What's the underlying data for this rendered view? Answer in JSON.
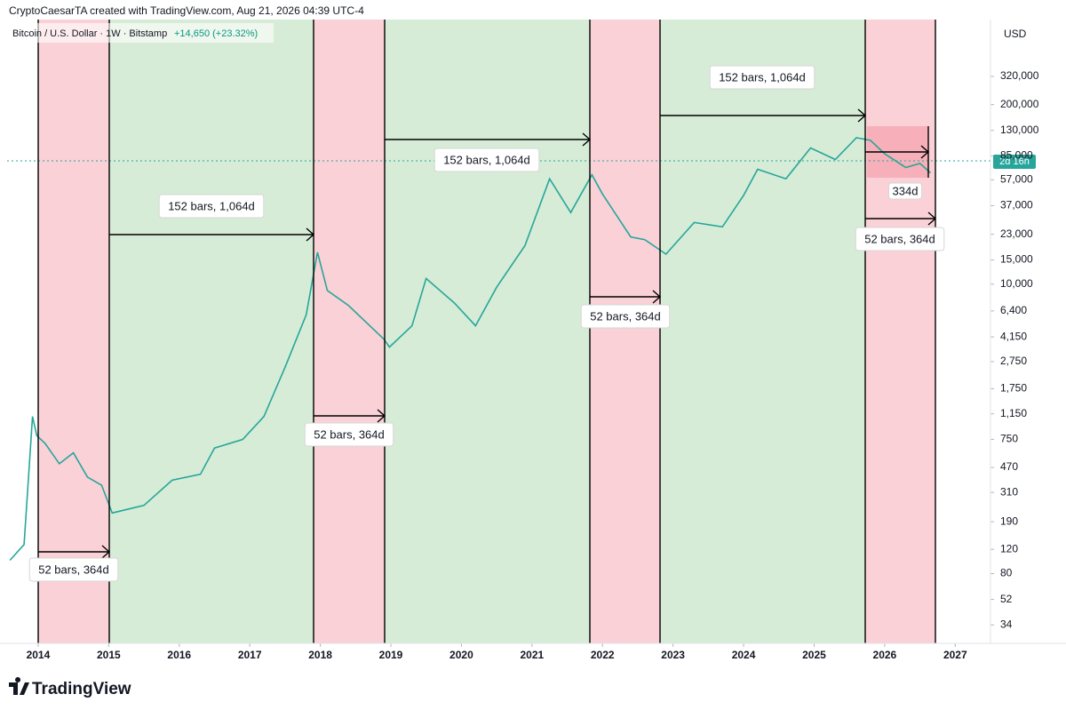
{
  "header": {
    "credit": "CryptoCaesarTA created with TradingView.com, Aug 21, 2026 04:39 UTC-4",
    "symbol": "Bitcoin / U.S. Dollar · 1W · Bitstamp",
    "change": "+14,650 (+23.32%)",
    "currency": "USD",
    "countdown": "2d 16h",
    "brand": "TradingView"
  },
  "chart_data": {
    "type": "line",
    "log_scale": true,
    "color": "#26a69a",
    "x": [
      2013.6,
      2013.8,
      2013.92,
      2013.98,
      2014.1,
      2014.3,
      2014.5,
      2014.7,
      2014.9,
      2015.05,
      2015.5,
      2015.9,
      2016.3,
      2016.5,
      2016.9,
      2017.2,
      2017.5,
      2017.8,
      2017.96,
      2018.1,
      2018.4,
      2018.9,
      2018.98,
      2019.3,
      2019.5,
      2019.9,
      2020.2,
      2020.5,
      2020.9,
      2021.25,
      2021.55,
      2021.85,
      2022.0,
      2022.4,
      2022.6,
      2022.9,
      2023.3,
      2023.7,
      2024.0,
      2024.2,
      2024.6,
      2024.95,
      2025.3,
      2025.6,
      2025.8,
      2026.0,
      2026.3,
      2026.5,
      2026.65
    ],
    "values": [
      100,
      130,
      1100,
      800,
      700,
      500,
      600,
      400,
      350,
      220,
      250,
      380,
      420,
      650,
      750,
      1100,
      2500,
      6000,
      17000,
      9000,
      7000,
      4000,
      3500,
      5000,
      11000,
      7300,
      5000,
      9500,
      19000,
      58000,
      33000,
      62000,
      45000,
      22000,
      21000,
      16500,
      28000,
      26000,
      44000,
      68000,
      58000,
      97000,
      80000,
      115000,
      110000,
      88000,
      70000,
      75000,
      64000
    ],
    "xlim": [
      2013.56,
      2027.5
    ],
    "xticks": [
      2014,
      2015,
      2016,
      2017,
      2018,
      2019,
      2020,
      2021,
      2022,
      2023,
      2024,
      2025,
      2026,
      2027
    ],
    "ylim": [
      25,
      826000
    ],
    "yticks": [
      {
        "value": 320000,
        "label": "320,000"
      },
      {
        "value": 200000,
        "label": "200,000"
      },
      {
        "value": 130000,
        "label": "130,000"
      },
      {
        "value": 85000,
        "label": "85,000"
      },
      {
        "value": 57000,
        "label": "57,000"
      },
      {
        "value": 37000,
        "label": "37,000"
      },
      {
        "value": 23000,
        "label": "23,000"
      },
      {
        "value": 15000,
        "label": "15,000"
      },
      {
        "value": 10000,
        "label": "10,000"
      },
      {
        "value": 6400,
        "label": "6,400"
      },
      {
        "value": 4150,
        "label": "4,150"
      },
      {
        "value": 2750,
        "label": "2,750"
      },
      {
        "value": 1750,
        "label": "1,750"
      },
      {
        "value": 1150,
        "label": "1,150"
      },
      750,
      470,
      310,
      190,
      120,
      80,
      52,
      34
    ],
    "annotations": [
      "52 bars, 364d",
      "152 bars, 1,064d",
      "52 bars, 364d",
      "152 bars, 1,064d",
      "52 bars, 364d",
      "152 bars, 1,064d",
      "52 bars, 364d",
      "334d"
    ]
  }
}
